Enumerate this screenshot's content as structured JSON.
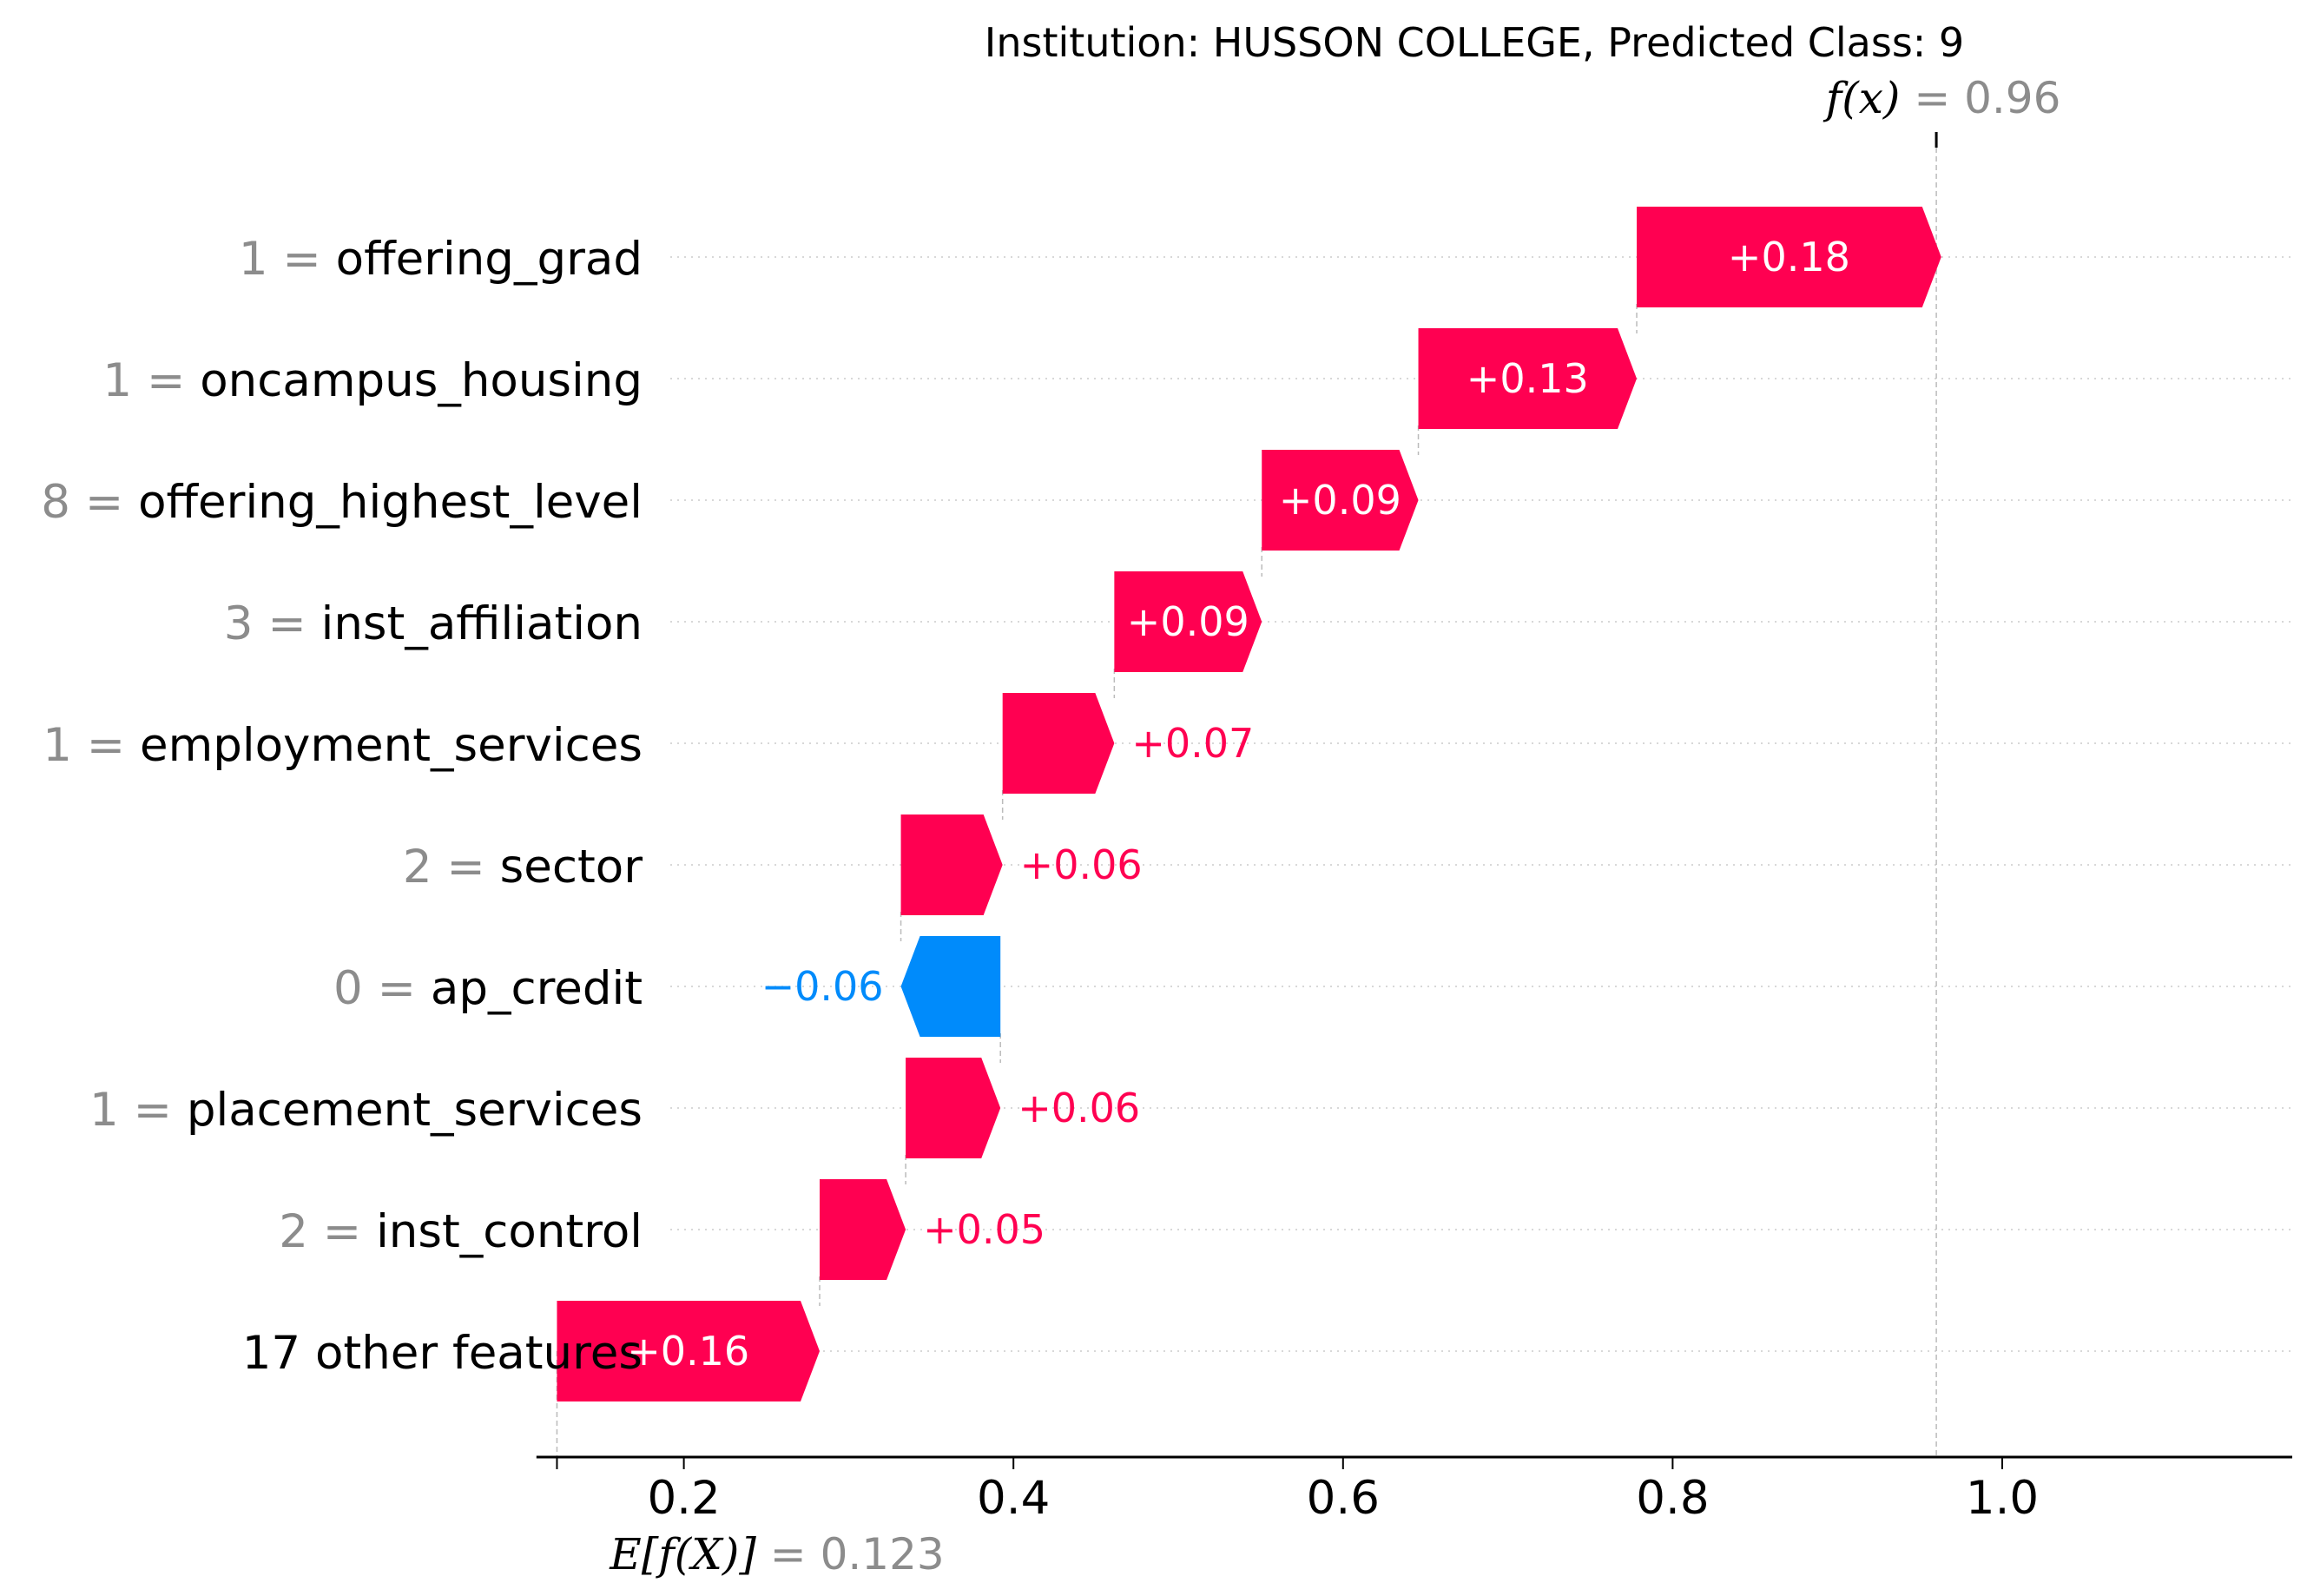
{
  "chart_data": {
    "type": "waterfall",
    "title": "Institution: HUSSON COLLEGE, Predicted Class: 9",
    "base_value": 0.123,
    "output_value": 0.96,
    "base_value_label": {
      "math": "E[f(X)]",
      "eq": " = ",
      "value": "0.123"
    },
    "output_value_label": {
      "math": "f(x)",
      "eq": " = ",
      "value": "0.96"
    },
    "xlim": [
      0.1,
      1.1
    ],
    "xticks": [
      0.2,
      0.4,
      0.6,
      0.8,
      1.0
    ],
    "xtick_labels": [
      "0.2",
      "0.4",
      "0.6",
      "0.8",
      "1.0"
    ],
    "features": [
      {
        "value": "1",
        "name": "offering_grad",
        "contribution": 0.1848,
        "label": "+0.18"
      },
      {
        "value": "1",
        "name": "oncampus_housing",
        "contribution": 0.1325,
        "label": "+0.13"
      },
      {
        "value": "8",
        "name": "offering_highest_level",
        "contribution": 0.095,
        "label": "+0.09"
      },
      {
        "value": "3",
        "name": "inst_affiliation",
        "contribution": 0.0895,
        "label": "+0.09"
      },
      {
        "value": "1",
        "name": "employment_services",
        "contribution": 0.0678,
        "label": "+0.07"
      },
      {
        "value": "2",
        "name": "sector",
        "contribution": 0.0617,
        "label": "+0.06"
      },
      {
        "value": "0",
        "name": "ap_credit",
        "contribution": -0.0604,
        "label": "−0.06"
      },
      {
        "value": "1",
        "name": "placement_services",
        "contribution": 0.0575,
        "label": "+0.06"
      },
      {
        "value": "2",
        "name": "inst_control",
        "contribution": 0.0522,
        "label": "+0.05"
      },
      {
        "value": "",
        "name": "17 other features",
        "contribution": 0.1594,
        "label": "+0.16"
      }
    ],
    "colors": {
      "positive": "#ff0051",
      "negative": "#008bfb",
      "label_inside": "#ffffff",
      "grey": "#8c8c8c"
    }
  }
}
